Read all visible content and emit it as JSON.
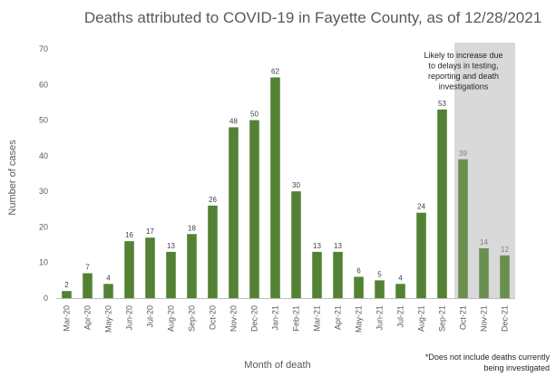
{
  "chart_data": {
    "type": "bar",
    "title": "Deaths attributed to COVID-19 in Fayette County, as of 12/28/2021",
    "xlabel": "Month of death",
    "ylabel": "Number of cases",
    "ylim": [
      0,
      70
    ],
    "yticks": [
      0,
      10,
      20,
      30,
      40,
      50,
      60,
      70
    ],
    "grid": false,
    "categories": [
      "Mar-20",
      "Apr-20",
      "May-20",
      "Jun-20",
      "Jul-20",
      "Aug-20",
      "Sep-20",
      "Oct-20",
      "Nov-20",
      "Dec-20",
      "Jan-21",
      "Feb-21",
      "Mar-21",
      "Apr-21",
      "May-21",
      "Jun-21",
      "Jul-21",
      "Aug-21",
      "Sep-21",
      "Oct-21",
      "Nov-21",
      "Dec-21"
    ],
    "values": [
      2,
      7,
      4,
      16,
      17,
      13,
      18,
      26,
      48,
      50,
      62,
      30,
      13,
      13,
      6,
      5,
      4,
      24,
      53,
      39,
      14,
      12
    ],
    "data_labels": [
      "2",
      "7",
      "4",
      "16",
      "17",
      "13",
      "18",
      "26",
      "48",
      "50",
      "62",
      "30",
      "13",
      "13",
      "6",
      "5",
      "4",
      "24",
      "53",
      "39",
      "14",
      "12"
    ],
    "shaded_region": {
      "from_category": "Oct-21",
      "to_category": "Dec-21",
      "label_lines": [
        "Likely to increase due",
        "to delays in testing,",
        "reporting and death",
        "investigations"
      ]
    },
    "footnote_lines": [
      "*Does not include deaths currently",
      "being investigated"
    ],
    "colors": {
      "bar": "#548235",
      "bar_shaded": "#6a8f4f",
      "shade": "#d9d9d9",
      "axis": "#bfbfbf",
      "text": "#595959"
    }
  }
}
